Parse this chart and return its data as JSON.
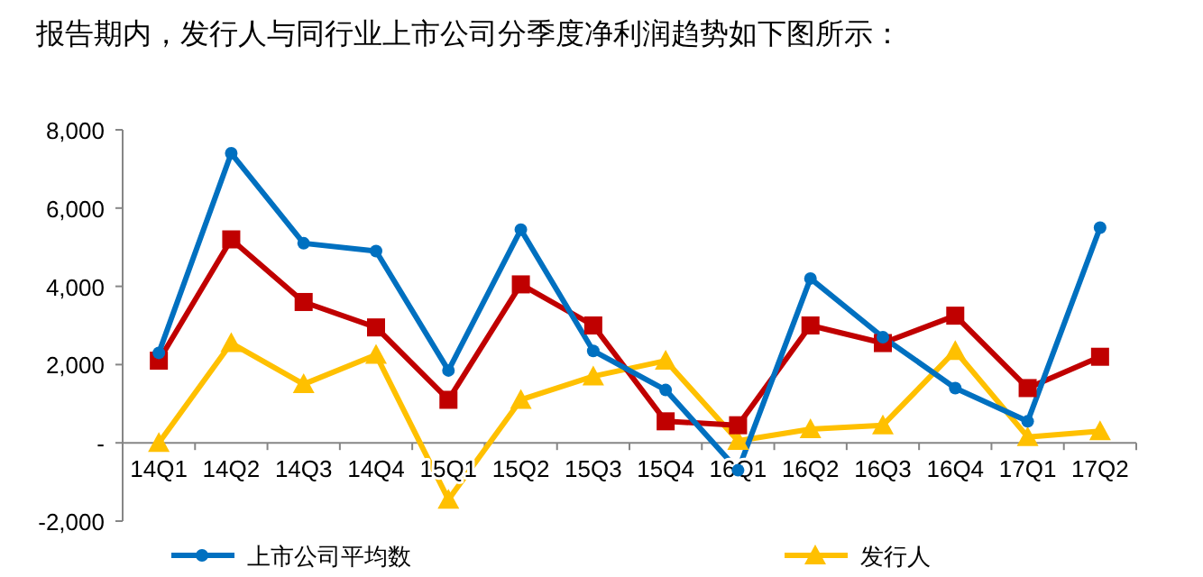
{
  "chart_data": {
    "type": "line",
    "title": "报告期内，发行人与同行业上市公司分季度净利润趋势如下图所示：",
    "categories": [
      "14Q1",
      "14Q2",
      "14Q3",
      "14Q4",
      "15Q1",
      "15Q2",
      "15Q3",
      "15Q4",
      "16Q1",
      "16Q2",
      "16Q3",
      "16Q4",
      "17Q1",
      "17Q2"
    ],
    "series": [
      {
        "name": "上市公司平均数",
        "color": "#0070c0",
        "marker": "circle",
        "values": [
          2300,
          7400,
          5100,
          4900,
          1850,
          5450,
          2350,
          1350,
          -700,
          4200,
          2700,
          1400,
          550,
          5500
        ]
      },
      {
        "color": "#c00000",
        "marker": "square",
        "values": [
          2100,
          5200,
          3600,
          2950,
          1100,
          4050,
          3000,
          550,
          450,
          3000,
          2550,
          3250,
          1400,
          2200
        ]
      },
      {
        "name": "发行人",
        "color": "#ffc000",
        "marker": "triangle",
        "values": [
          0,
          2550,
          1500,
          2250,
          -1450,
          1100,
          1700,
          2100,
          50,
          350,
          450,
          2350,
          150,
          300
        ]
      }
    ],
    "ylim": [
      -2000,
      8000
    ],
    "yticks": [
      {
        "value": -2000,
        "label": "-2,000"
      },
      {
        "value": 0,
        "label": "-"
      },
      {
        "value": 2000,
        "label": "2,000"
      },
      {
        "value": 4000,
        "label": "4,000"
      },
      {
        "value": 6000,
        "label": "6,000"
      },
      {
        "value": 8000,
        "label": "8,000"
      }
    ],
    "grid": false,
    "legend": "bottom",
    "line_style": "solid"
  }
}
